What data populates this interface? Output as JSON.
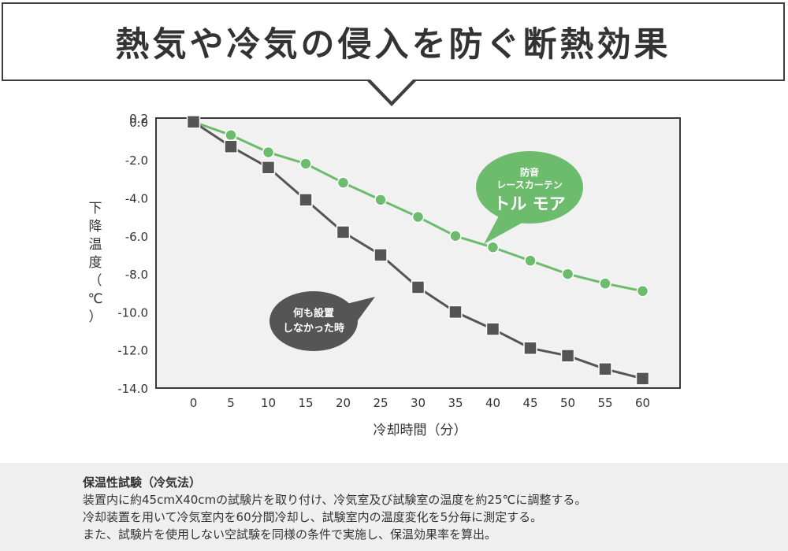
{
  "header": {
    "title": "熱気や冷気の侵入を防ぐ断熱効果"
  },
  "chart_data": {
    "type": "line",
    "title": "",
    "xlabel": "冷却時間（分）",
    "ylabel": "下降温度（℃）",
    "x": [
      0,
      5,
      10,
      15,
      20,
      25,
      30,
      35,
      40,
      45,
      50,
      55,
      60
    ],
    "xlim": [
      -5,
      65
    ],
    "ylim": [
      -14.0,
      0.2
    ],
    "yticks": [
      "0.2",
      "0.0",
      "-2.0",
      "-4.0",
      "-6.0",
      "-8.0",
      "-10.0",
      "-12.0",
      "-14.0"
    ],
    "grid": false,
    "series": [
      {
        "name": "防音 レースカーテン トル モア",
        "label_lines": [
          "防音",
          "レースカーテン",
          "トル モア"
        ],
        "marker": "circle",
        "color": "#6dbc6d",
        "values": [
          0.0,
          -0.7,
          -1.6,
          -2.2,
          -3.2,
          -4.1,
          -5.0,
          -6.0,
          -6.6,
          -7.3,
          -8.0,
          -8.5,
          -8.9
        ]
      },
      {
        "name": "何も設置しなかった時",
        "label_lines": [
          "何も設置",
          "しなかった時"
        ],
        "marker": "square",
        "color": "#555555",
        "values": [
          0.0,
          -1.3,
          -2.4,
          -4.1,
          -5.8,
          -7.0,
          -8.7,
          -10.0,
          -10.9,
          -11.9,
          -12.3,
          -13.0,
          -13.5
        ]
      }
    ]
  },
  "footer": {
    "heading": "保温性試験（冷気法）",
    "lines": [
      "装置内に約45cmX40cmの試験片を取り付け、冷気室及び試験室の温度を約25℃に調整する。",
      "冷却装置を用いて冷気室内を60分間冷却し、試験室内の温度変化を5分毎に測定する。",
      "また、試験片を使用しない空試験を同様の条件で実施し、保温効果率を算出。"
    ]
  }
}
